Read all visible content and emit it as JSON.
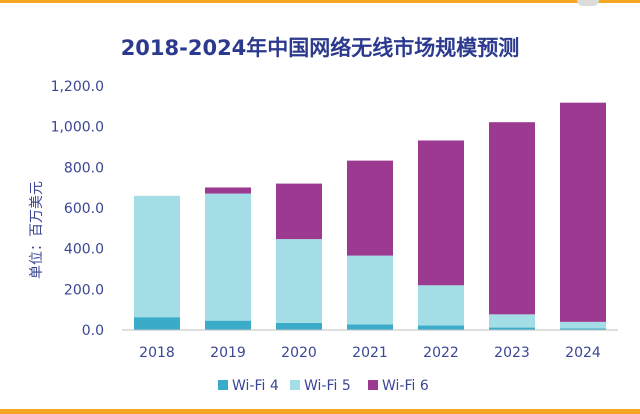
{
  "chart_data": {
    "type": "bar",
    "stacked": true,
    "title": "2018-2024年中国网络无线市场规模预测",
    "ylabel": "单位：百万美元",
    "xlabel": "",
    "ylim": [
      0,
      1200
    ],
    "yticks": [
      "0.0",
      "200.0",
      "400.0",
      "600.0",
      "800.0",
      "1,000.0",
      "1,200.0"
    ],
    "categories": [
      "2018",
      "2019",
      "2020",
      "2021",
      "2022",
      "2023",
      "2024"
    ],
    "series": [
      {
        "name": "Wi-Fi 4",
        "color": "#3aabc9",
        "values": [
          63,
          46,
          35,
          28,
          22,
          12,
          8
        ]
      },
      {
        "name": "Wi-Fi 5",
        "color": "#a3dde6",
        "values": [
          597,
          625,
          412,
          338,
          198,
          65,
          32
        ]
      },
      {
        "name": "Wi-Fi 6",
        "color": "#9c3990",
        "values": [
          0,
          30,
          273,
          467,
          712,
          945,
          1078
        ]
      }
    ],
    "grid": false,
    "legend": "bottom"
  }
}
